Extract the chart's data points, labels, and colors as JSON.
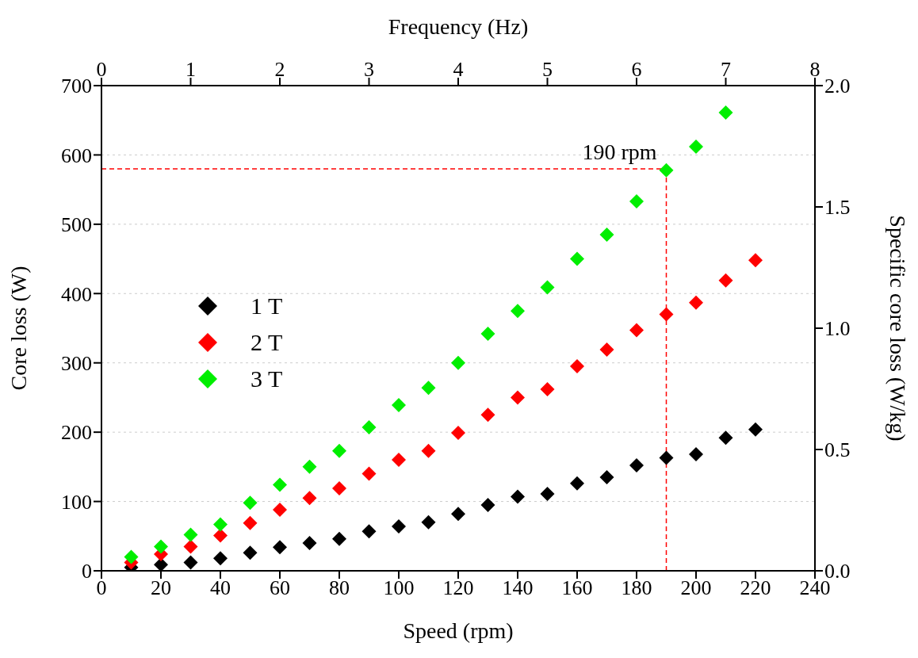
{
  "chart_data": {
    "type": "scatter",
    "xlabel": "Speed (rpm)",
    "ylabel": "Core loss (W)",
    "x2label": "Frequency (Hz)",
    "y2label": "Specific core loss (W/kg)",
    "x": [
      10,
      20,
      30,
      40,
      50,
      60,
      70,
      80,
      90,
      100,
      110,
      120,
      130,
      140,
      150,
      160,
      170,
      180,
      190,
      200,
      210,
      220
    ],
    "series": [
      {
        "name": "1 T",
        "color": "#000000",
        "values": [
          5,
          9,
          12,
          18,
          26,
          34,
          40,
          46,
          57,
          64,
          70,
          82,
          95,
          107,
          111,
          126,
          135,
          152,
          163,
          168,
          192,
          204
        ]
      },
      {
        "name": "2 T",
        "color": "#ff0000",
        "values": [
          12,
          24,
          35,
          51,
          69,
          88,
          105,
          119,
          140,
          160,
          173,
          199,
          225,
          250,
          262,
          295,
          319,
          347,
          370,
          387,
          419,
          448
        ]
      },
      {
        "name": "3 T",
        "color": "#00ee00",
        "values": [
          20,
          35,
          52,
          67,
          98,
          124,
          150,
          173,
          207,
          239,
          264,
          300,
          342,
          375,
          409,
          450,
          485,
          533,
          578,
          612,
          661,
          null
        ]
      }
    ],
    "xlim": [
      0,
      240
    ],
    "xticks": [
      0,
      20,
      40,
      60,
      80,
      100,
      120,
      140,
      160,
      180,
      200,
      220,
      240
    ],
    "ylim": [
      0,
      700
    ],
    "yticks": [
      0,
      100,
      200,
      300,
      400,
      500,
      600,
      700
    ],
    "x2lim": [
      0,
      8
    ],
    "x2ticks": [
      0,
      1,
      2,
      3,
      4,
      5,
      6,
      7,
      8
    ],
    "y2lim": [
      0,
      2
    ],
    "y2ticks": [
      {
        "value": 0,
        "label": "0.0"
      },
      {
        "value": 0.5,
        "label": "0.5"
      },
      {
        "value": 1,
        "label": "1.0"
      },
      {
        "value": 1.5,
        "label": "1.5"
      },
      {
        "value": 2,
        "label": "2.0"
      }
    ],
    "ref_lines": [
      {
        "axis": "y",
        "value": 580,
        "color": "#ff0000",
        "line_style": "dashed"
      },
      {
        "axis": "x",
        "value": 190,
        "label": "190 rpm",
        "color": "#ff0000",
        "line_style": "dashed"
      }
    ],
    "grid": "y",
    "legend": "left",
    "marker": "diamond"
  }
}
